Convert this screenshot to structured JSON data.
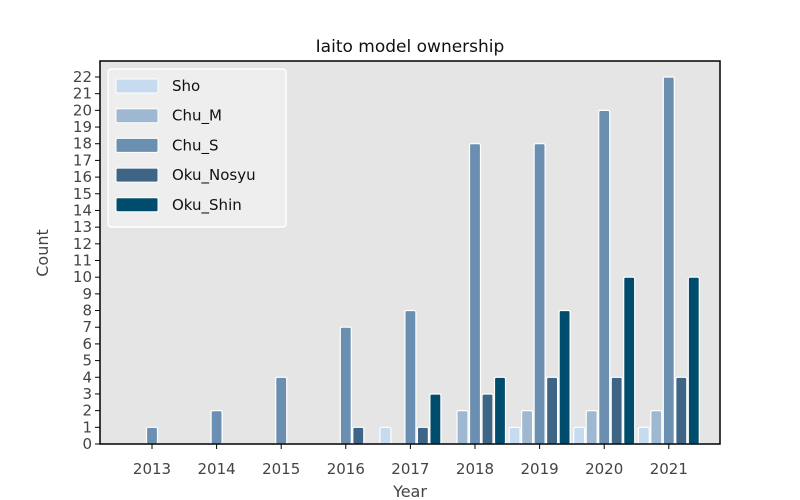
{
  "chart_data": {
    "type": "bar",
    "title": "Iaito model ownership",
    "xlabel": "Year",
    "ylabel": "Count",
    "categories": [
      "2013",
      "2014",
      "2015",
      "2016",
      "2017",
      "2018",
      "2019",
      "2020",
      "2021"
    ],
    "series": [
      {
        "name": "Sho",
        "color": "#c6dbef",
        "values": [
          0,
          0,
          0,
          0,
          1,
          0,
          1,
          1,
          1
        ]
      },
      {
        "name": "Chu_M",
        "color": "#9fb8d2",
        "values": [
          0,
          0,
          0,
          0,
          0,
          2,
          2,
          2,
          2
        ]
      },
      {
        "name": "Chu_S",
        "color": "#6b8fb0",
        "values": [
          1,
          2,
          4,
          7,
          8,
          18,
          18,
          20,
          22
        ]
      },
      {
        "name": "Oku_Nosyu",
        "color": "#3e6585",
        "values": [
          0,
          0,
          0,
          1,
          1,
          3,
          4,
          4,
          4
        ]
      },
      {
        "name": "Oku_Shin",
        "color": "#004c6d",
        "values": [
          0,
          0,
          0,
          0,
          3,
          4,
          8,
          10,
          10
        ]
      }
    ],
    "ylim": [
      0,
      22
    ],
    "yticks": [
      0,
      1,
      2,
      3,
      4,
      5,
      6,
      7,
      8,
      9,
      10,
      11,
      12,
      13,
      14,
      15,
      16,
      17,
      18,
      19,
      20,
      21,
      22
    ],
    "grid": false,
    "legend_position": "top-left"
  }
}
